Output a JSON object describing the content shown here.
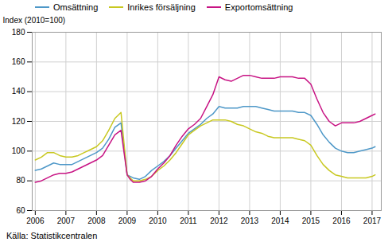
{
  "chart_data": {
    "type": "line",
    "ylabel": "Index (2010=100)",
    "source": "Källa: Statistikcentralen",
    "xlim": [
      2005.9,
      2017.3
    ],
    "xticks": [
      2006,
      2007,
      2008,
      2009,
      2010,
      2011,
      2012,
      2013,
      2014,
      2015,
      2016,
      2017
    ],
    "ylim": [
      60,
      180
    ],
    "yticks": [
      60,
      80,
      100,
      120,
      140,
      160,
      180
    ],
    "grid": true,
    "legend": "upper left",
    "x": [
      2006.0,
      2006.2,
      2006.4,
      2006.6,
      2006.8,
      2007.0,
      2007.2,
      2007.4,
      2007.6,
      2007.8,
      2008.0,
      2008.2,
      2008.4,
      2008.6,
      2008.8,
      2009.0,
      2009.1,
      2009.2,
      2009.4,
      2009.6,
      2009.8,
      2010.0,
      2010.2,
      2010.4,
      2010.6,
      2010.8,
      2011.0,
      2011.2,
      2011.4,
      2011.6,
      2011.8,
      2012.0,
      2012.2,
      2012.4,
      2012.6,
      2012.8,
      2013.0,
      2013.2,
      2013.4,
      2013.6,
      2013.8,
      2014.0,
      2014.2,
      2014.4,
      2014.6,
      2014.8,
      2015.0,
      2015.2,
      2015.4,
      2015.6,
      2015.8,
      2016.0,
      2016.2,
      2016.4,
      2016.6,
      2016.8,
      2017.0,
      2017.1
    ],
    "series": [
      {
        "name": "Omsättning",
        "color": "#4e98c8",
        "values": [
          87,
          88,
          90,
          92,
          91,
          91,
          91,
          93,
          95,
          97,
          99,
          102,
          108,
          116,
          119,
          84,
          83,
          82,
          81,
          83,
          87,
          90,
          93,
          97,
          102,
          107,
          112,
          115,
          118,
          122,
          125,
          130,
          129,
          129,
          129,
          130,
          130,
          130,
          129,
          128,
          127,
          127,
          127,
          127,
          126,
          126,
          124,
          118,
          111,
          106,
          102,
          100,
          99,
          99,
          100,
          101,
          102,
          103
        ]
      },
      {
        "name": "Inrikes försäljning",
        "color": "#c8c820",
        "values": [
          94,
          96,
          99,
          99,
          97,
          96,
          96,
          97,
          99,
          101,
          103,
          107,
          114,
          122,
          126,
          84,
          82,
          80,
          80,
          81,
          83,
          87,
          90,
          94,
          99,
          105,
          111,
          114,
          117,
          119,
          121,
          121,
          121,
          120,
          118,
          117,
          115,
          113,
          112,
          110,
          109,
          109,
          109,
          109,
          108,
          107,
          104,
          97,
          91,
          87,
          84,
          83,
          82,
          82,
          82,
          82,
          83,
          84
        ]
      },
      {
        "name": "Exportomsättning",
        "color": "#c81484",
        "values": [
          79,
          80,
          82,
          84,
          85,
          85,
          86,
          88,
          90,
          92,
          94,
          97,
          104,
          111,
          114,
          84,
          81,
          79,
          79,
          80,
          83,
          88,
          92,
          97,
          104,
          110,
          115,
          118,
          122,
          130,
          138,
          150,
          148,
          147,
          149,
          151,
          151,
          150,
          149,
          149,
          149,
          150,
          150,
          150,
          149,
          149,
          145,
          135,
          126,
          120,
          117,
          119,
          119,
          119,
          120,
          122,
          124,
          125
        ]
      }
    ]
  }
}
